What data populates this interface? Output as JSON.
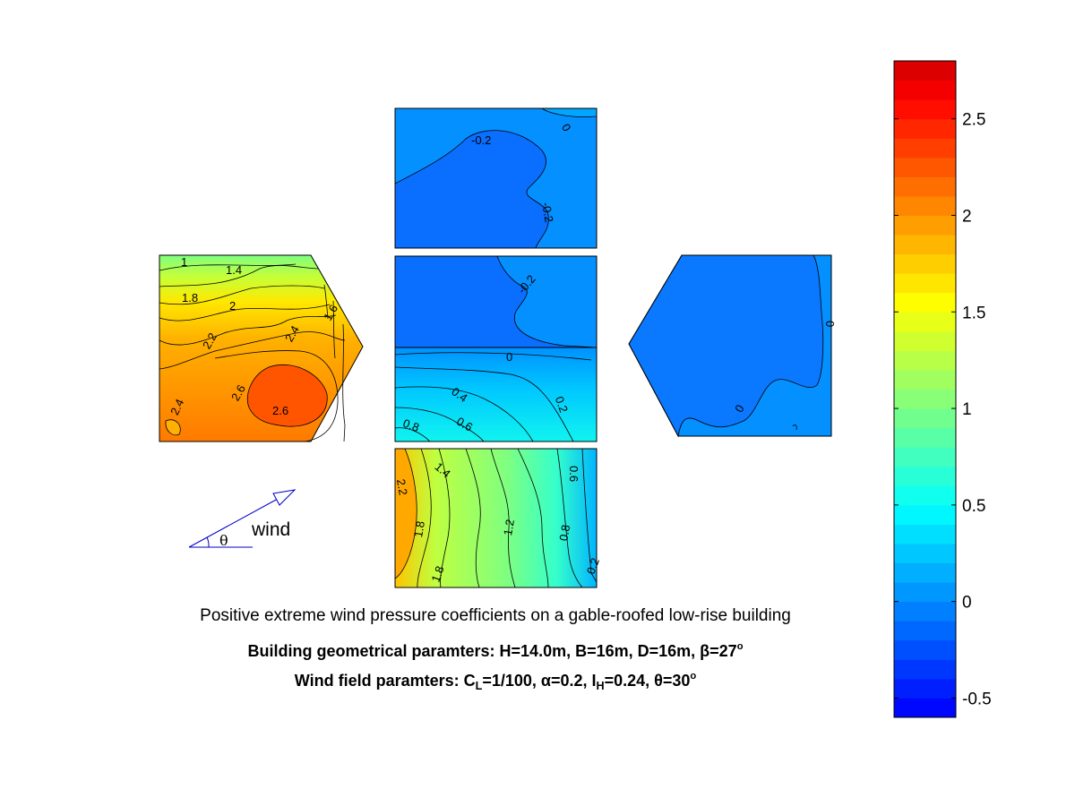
{
  "caption": {
    "title": "Positive extreme wind pressure coefficients on a gable-roofed low-rise building",
    "geometry_prefix": "Building geometrical paramters: H=14.0m, B=16m, D=16m, β=27",
    "geometry_sup": "o",
    "wind_prefix": "Wind field paramters: C",
    "wind_sub_L": "L",
    "wind_mid1": "=1/100, α=0.2, I",
    "wind_sub_H": "H",
    "wind_mid2": "=0.24, θ=30",
    "wind_sup": "o"
  },
  "wind_indicator": {
    "label": "wind",
    "angle_symbol": "θ",
    "angle_deg": 30
  },
  "colormap": "jet",
  "chart_data": {
    "type": "heatmap",
    "colorbar": {
      "range": [
        -0.6,
        2.8
      ],
      "ticks": [
        -0.5,
        0,
        0.5,
        1,
        1.5,
        2,
        2.5
      ],
      "tick_labels": [
        "-0.5",
        "0",
        "0.5",
        "1",
        "1.5",
        "2",
        "2.5"
      ]
    },
    "panels": [
      {
        "face": "left gable wall",
        "base_value": 2.5,
        "contour_labels": [
          "1",
          "1.4",
          "1.8",
          "2",
          "2.2",
          "2.4",
          "1.6",
          "2.4",
          "2.6",
          "2.6"
        ]
      },
      {
        "face": "upper side wall",
        "base_value": -0.15,
        "contour_labels": [
          "-0.2",
          "0",
          "-0.2"
        ]
      },
      {
        "face": "leeward roof",
        "base_value": -0.25,
        "contour_labels": [
          "-0.2"
        ]
      },
      {
        "face": "windward roof",
        "base_value": 0.3,
        "contour_labels": [
          "0",
          "0.4",
          "0.2",
          "0.8",
          "0.6"
        ]
      },
      {
        "face": "windward side wall",
        "base_value": 1.3,
        "contour_labels": [
          "2.2",
          "1.4",
          "1.8",
          "1.2",
          "0.8",
          "0.6",
          "1.8",
          "0.2"
        ]
      },
      {
        "face": "right gable wall",
        "base_value": -0.02,
        "contour_labels": [
          "0",
          "0"
        ]
      }
    ]
  }
}
